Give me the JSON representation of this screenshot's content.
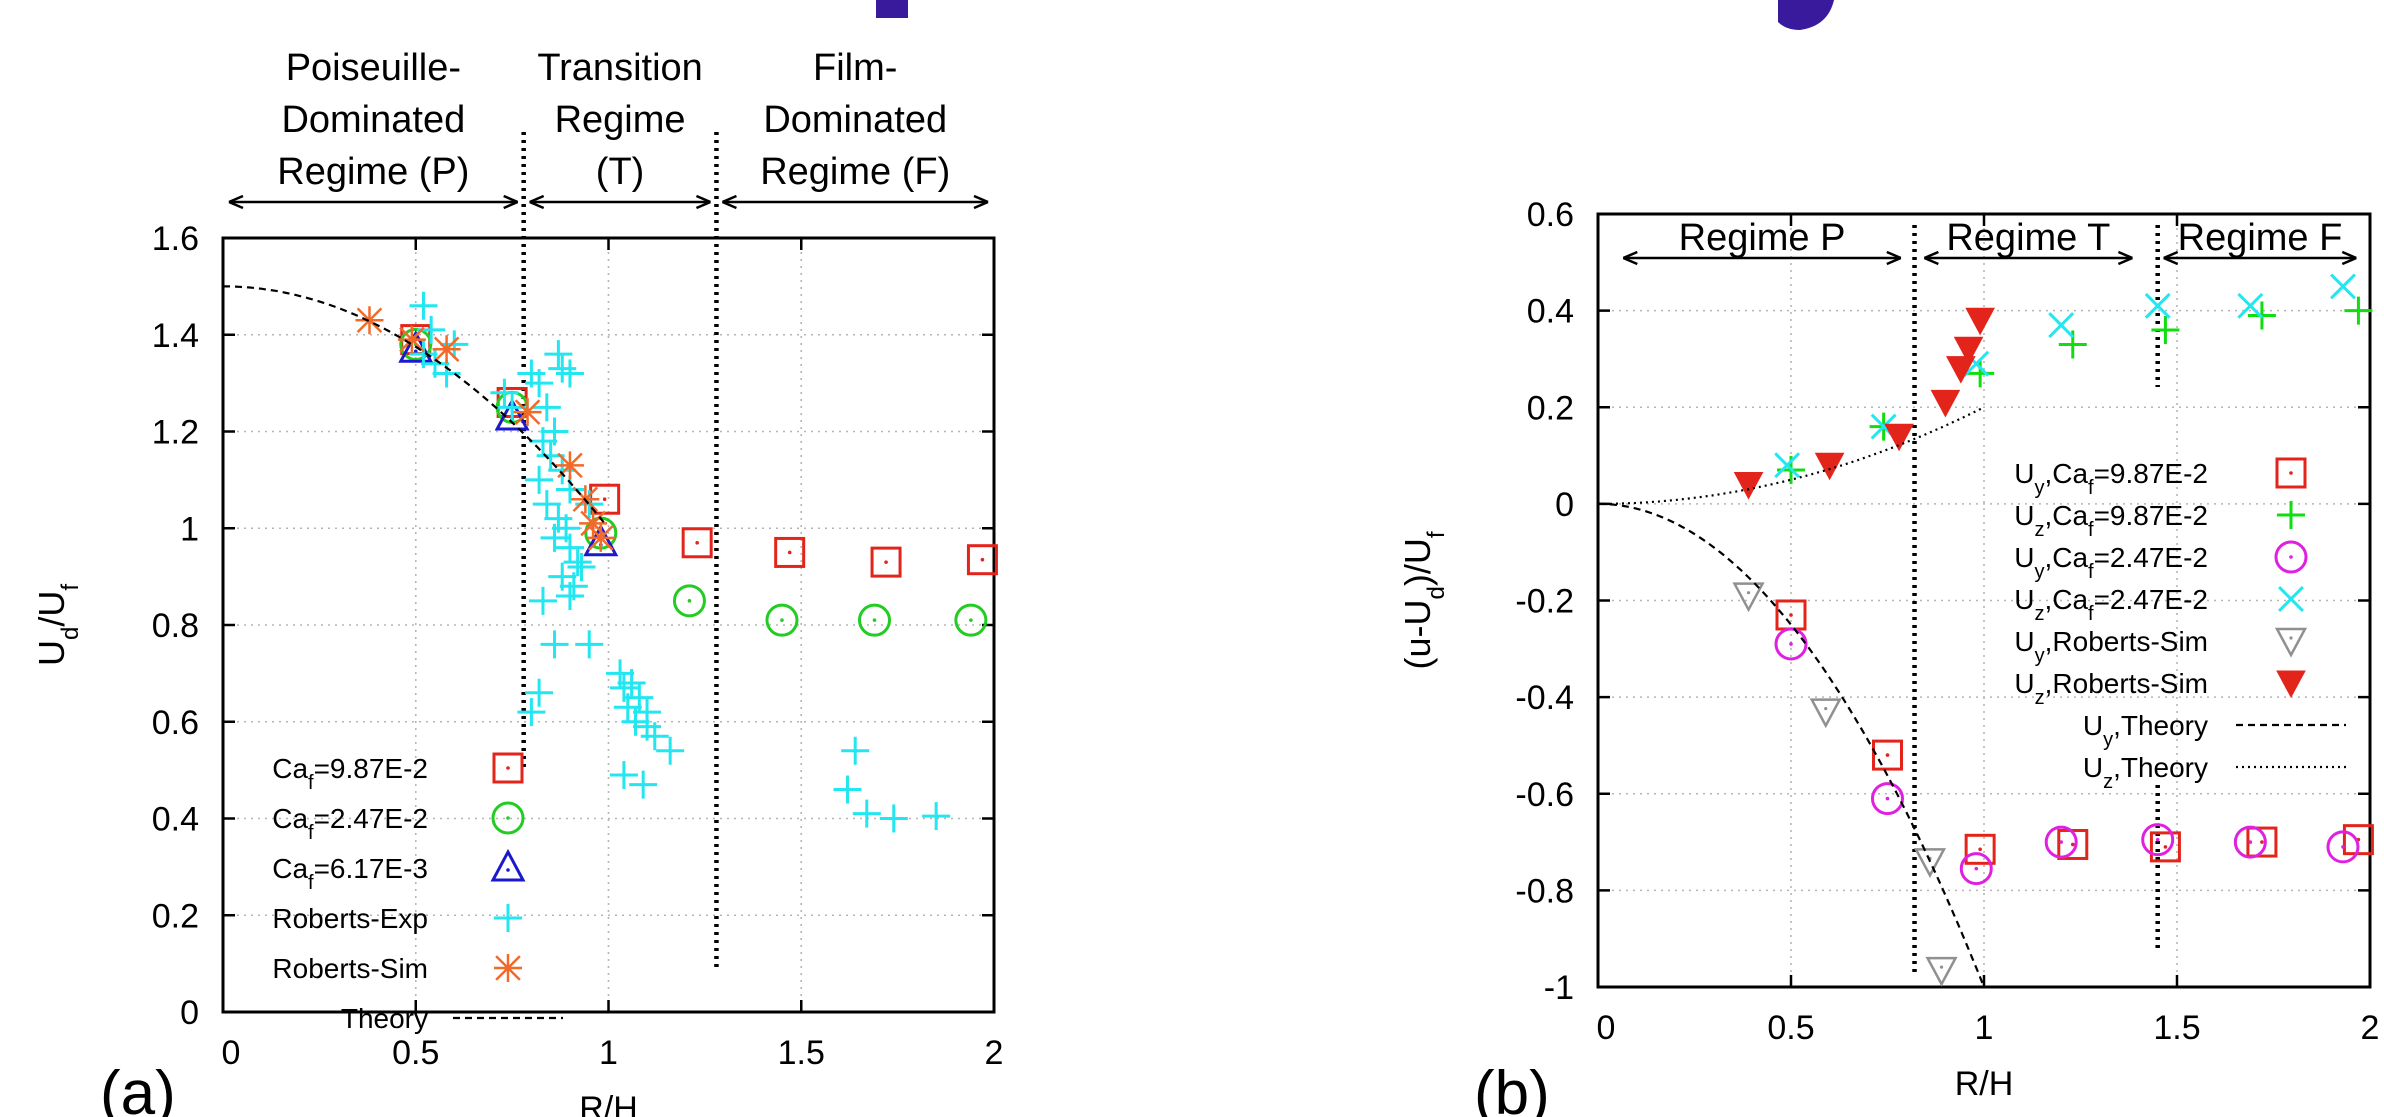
{
  "colors": {
    "accent_blue": "#3a1a9c",
    "red": "#e3241b",
    "green": "#22cc22",
    "blue": "#1a1acc",
    "cyan": "#22e6f0",
    "orange": "#f26a2a",
    "magenta": "#e020e0",
    "gray": "#909090",
    "bright_green": "#11dd11"
  },
  "chart_data": [
    {
      "panel_label": "(a)",
      "type": "scatter",
      "xlabel": "R/H",
      "ylabel": "U_d/U_f",
      "ylabel_parts": {
        "main": "U",
        "sub1": "d",
        "mid": "/U",
        "sub2": "f"
      },
      "xlim": [
        0,
        2
      ],
      "ylim": [
        0,
        1.6
      ],
      "x_ticks": [
        0,
        0.5,
        1,
        1.5,
        2
      ],
      "x_tick_labels": [
        "0",
        "0.5",
        "1",
        "1.5",
        "2"
      ],
      "y_ticks": [
        0,
        0.2,
        0.4,
        0.6,
        0.8,
        1,
        1.2,
        1.4,
        1.6
      ],
      "y_tick_labels": [
        "0",
        "0.2",
        "0.4",
        "0.6",
        "0.8",
        "1",
        "1.2",
        "1.4",
        "1.6"
      ],
      "grid": true,
      "legend_position": "bottom-left",
      "regimes": [
        {
          "lines": [
            "Poiseuille-",
            "Dominated",
            "Regime (P)"
          ],
          "x_from": 0.0,
          "x_to": 0.78
        },
        {
          "lines": [
            "Transition",
            "Regime",
            "(T)"
          ],
          "x_from": 0.78,
          "x_to": 1.28
        },
        {
          "lines": [
            "Film-",
            "Dominated",
            "Regime (F)"
          ],
          "x_from": 1.28,
          "x_to": 2.0
        }
      ],
      "boundaries": [
        0.78,
        1.28
      ],
      "series": [
        {
          "name": "Ca_f=9.87E-2",
          "name_parts": {
            "main": "Ca",
            "sub": "f",
            "rest": "=9.87E-2"
          },
          "marker": "square",
          "color": "#e3241b",
          "points": [
            [
              0.5,
              1.39
            ],
            [
              0.75,
              1.26
            ],
            [
              0.99,
              1.06
            ],
            [
              1.23,
              0.97
            ],
            [
              1.47,
              0.95
            ],
            [
              1.72,
              0.93
            ],
            [
              1.97,
              0.935
            ]
          ]
        },
        {
          "name": "Ca_f=2.47E-2",
          "name_parts": {
            "main": "Ca",
            "sub": "f",
            "rest": "=2.47E-2"
          },
          "marker": "circle",
          "color": "#22cc22",
          "points": [
            [
              0.5,
              1.38
            ],
            [
              0.75,
              1.25
            ],
            [
              0.98,
              0.99
            ],
            [
              1.21,
              0.85
            ],
            [
              1.45,
              0.81
            ],
            [
              1.69,
              0.81
            ],
            [
              1.94,
              0.81
            ]
          ]
        },
        {
          "name": "Ca_f=6.17E-3",
          "name_parts": {
            "main": "Ca",
            "sub": "f",
            "rest": "=6.17E-3"
          },
          "marker": "triangle",
          "color": "#1a1acc",
          "points": [
            [
              0.5,
              1.37
            ],
            [
              0.75,
              1.23
            ],
            [
              0.98,
              0.97
            ]
          ]
        },
        {
          "name": "Roberts-Exp",
          "marker": "plus",
          "color": "#22e6f0",
          "points": [
            [
              0.52,
              1.46
            ],
            [
              0.54,
              1.41
            ],
            [
              0.52,
              1.36
            ],
            [
              0.55,
              1.34
            ],
            [
              0.58,
              1.32
            ],
            [
              0.6,
              1.38
            ],
            [
              0.73,
              1.28
            ],
            [
              0.75,
              1.25
            ],
            [
              0.8,
              1.32
            ],
            [
              0.82,
              1.3
            ],
            [
              0.84,
              1.25
            ],
            [
              0.86,
              1.2
            ],
            [
              0.87,
              1.36
            ],
            [
              0.88,
              1.33
            ],
            [
              0.9,
              1.32
            ],
            [
              0.83,
              1.18
            ],
            [
              0.85,
              1.15
            ],
            [
              0.88,
              1.12
            ],
            [
              0.9,
              1.08
            ],
            [
              0.82,
              1.1
            ],
            [
              0.84,
              1.05
            ],
            [
              0.87,
              1.02
            ],
            [
              0.89,
              1.0
            ],
            [
              0.86,
              0.98
            ],
            [
              0.9,
              0.96
            ],
            [
              0.92,
              0.93
            ],
            [
              0.88,
              0.9
            ],
            [
              0.91,
              0.88
            ],
            [
              0.93,
              0.92
            ],
            [
              0.95,
              1.05
            ],
            [
              0.9,
              0.86
            ],
            [
              0.83,
              0.85
            ],
            [
              0.86,
              0.76
            ],
            [
              0.95,
              0.76
            ],
            [
              0.82,
              0.66
            ],
            [
              0.8,
              0.62
            ],
            [
              1.03,
              0.7
            ],
            [
              1.04,
              0.67
            ],
            [
              1.06,
              0.68
            ],
            [
              1.08,
              0.65
            ],
            [
              1.05,
              0.63
            ],
            [
              1.1,
              0.62
            ],
            [
              1.07,
              0.6
            ],
            [
              1.1,
              0.59
            ],
            [
              1.12,
              0.57
            ],
            [
              1.16,
              0.54
            ],
            [
              1.04,
              0.49
            ],
            [
              1.09,
              0.47
            ],
            [
              1.64,
              0.54
            ],
            [
              1.62,
              0.46
            ],
            [
              1.67,
              0.41
            ],
            [
              1.74,
              0.4
            ],
            [
              1.85,
              0.405
            ]
          ]
        },
        {
          "name": "Roberts-Sim",
          "marker": "asterisk",
          "color": "#f26a2a",
          "points": [
            [
              0.38,
              1.43
            ],
            [
              0.49,
              1.39
            ],
            [
              0.58,
              1.37
            ],
            [
              0.79,
              1.24
            ],
            [
              0.9,
              1.13
            ],
            [
              0.94,
              1.06
            ],
            [
              0.96,
              1.01
            ],
            [
              0.98,
              0.98
            ]
          ]
        },
        {
          "name": "Theory",
          "marker": "dashed-line",
          "color": "#000000",
          "curve": "poiseuille",
          "x_range": [
            0.0,
            0.99
          ]
        }
      ]
    },
    {
      "panel_label": "(b)",
      "type": "scatter",
      "xlabel": "R/H",
      "ylabel": "(u-U_d)/U_f",
      "ylabel_parts": {
        "main": "(u-U",
        "sub1": "d",
        "mid": ")/U",
        "sub2": "f"
      },
      "xlim": [
        0,
        2
      ],
      "ylim": [
        -1,
        0.6
      ],
      "x_ticks": [
        0,
        0.5,
        1,
        1.5,
        2
      ],
      "x_tick_labels": [
        "0",
        "0.5",
        "1",
        "1.5",
        "2"
      ],
      "y_ticks": [
        -1,
        -0.8,
        -0.6,
        -0.4,
        -0.2,
        0,
        0.2,
        0.4,
        0.6
      ],
      "y_tick_labels": [
        "-1",
        "-0.8",
        "-0.6",
        "-0.4",
        "-0.2",
        "0",
        "0.2",
        "0.4",
        "0.6"
      ],
      "grid": true,
      "legend_position": "right",
      "regimes": [
        {
          "label": "Regime P",
          "x_from": 0.05,
          "x_to": 0.8
        },
        {
          "label": "Regime T",
          "x_from": 0.83,
          "x_to": 1.4
        },
        {
          "label": "Regime F",
          "x_from": 1.45,
          "x_to": 1.98
        }
      ],
      "boundaries": [
        0.82,
        1.45
      ],
      "series": [
        {
          "name": "U_y,Ca_f=9.87E-2",
          "name_parts": {
            "a": "U",
            "s1": "y",
            "b": ",Ca",
            "s2": "f",
            "c": "=9.87E-2"
          },
          "marker": "square",
          "color": "#e3241b",
          "points": [
            [
              0.5,
              -0.23
            ],
            [
              0.75,
              -0.52
            ],
            [
              0.99,
              -0.715
            ],
            [
              1.23,
              -0.705
            ],
            [
              1.47,
              -0.71
            ],
            [
              1.72,
              -0.7
            ],
            [
              1.97,
              -0.695
            ]
          ]
        },
        {
          "name": "U_z,Ca_f=9.87E-2",
          "name_parts": {
            "a": "U",
            "s1": "z",
            "b": ",Ca",
            "s2": "f",
            "c": "=9.87E-2"
          },
          "marker": "plus",
          "color": "#11dd11",
          "points": [
            [
              0.5,
              0.07
            ],
            [
              0.74,
              0.16
            ],
            [
              0.99,
              0.27
            ],
            [
              1.23,
              0.33
            ],
            [
              1.47,
              0.36
            ],
            [
              1.72,
              0.39
            ],
            [
              1.97,
              0.4
            ]
          ]
        },
        {
          "name": "U_y,Ca_f=2.47E-2",
          "name_parts": {
            "a": "U",
            "s1": "y",
            "b": ",Ca",
            "s2": "f",
            "c": "=2.47E-2"
          },
          "marker": "circle",
          "color": "#e020e0",
          "points": [
            [
              0.5,
              -0.29
            ],
            [
              0.75,
              -0.61
            ],
            [
              0.98,
              -0.755
            ],
            [
              1.2,
              -0.7
            ],
            [
              1.45,
              -0.695
            ],
            [
              1.69,
              -0.7
            ],
            [
              1.93,
              -0.71
            ]
          ]
        },
        {
          "name": "U_z,Ca_f=2.47E-2",
          "name_parts": {
            "a": "U",
            "s1": "z",
            "b": ",Ca",
            "s2": "f",
            "c": "=2.47E-2"
          },
          "marker": "cross",
          "color": "#22e6f0",
          "points": [
            [
              0.49,
              0.08
            ],
            [
              0.74,
              0.16
            ],
            [
              0.98,
              0.29
            ],
            [
              1.2,
              0.37
            ],
            [
              1.45,
              0.41
            ],
            [
              1.69,
              0.41
            ],
            [
              1.93,
              0.45
            ]
          ]
        },
        {
          "name": "U_y,Roberts-Sim",
          "name_parts": {
            "a": "U",
            "s1": "y",
            "b": ",Roberts-Sim"
          },
          "marker": "triangle-down-open",
          "color": "#909090",
          "points": [
            [
              0.39,
              -0.19
            ],
            [
              0.59,
              -0.43
            ],
            [
              0.86,
              -0.74
            ],
            [
              0.89,
              -0.965
            ]
          ]
        },
        {
          "name": "U_z,Roberts-Sim",
          "name_parts": {
            "a": "U",
            "s1": "z",
            "b": ",Roberts-Sim"
          },
          "marker": "triangle-down-filled",
          "color": "#e3241b",
          "points": [
            [
              0.39,
              0.04
            ],
            [
              0.6,
              0.08
            ],
            [
              0.78,
              0.14
            ],
            [
              0.9,
              0.21
            ],
            [
              0.94,
              0.28
            ],
            [
              0.96,
              0.32
            ],
            [
              0.99,
              0.38
            ]
          ]
        },
        {
          "name": "U_y,Theory",
          "name_parts": {
            "a": "U",
            "s1": "y",
            "b": ",Theory"
          },
          "marker": "dashed-line",
          "color": "#000000",
          "curve": "uy",
          "x_range": [
            0.0,
            1.0
          ]
        },
        {
          "name": "U_z,Theory",
          "name_parts": {
            "a": "U",
            "s1": "z",
            "b": ",Theory"
          },
          "marker": "dotted-line",
          "color": "#000000",
          "curve": "uz",
          "x_range": [
            0.0,
            1.0
          ]
        }
      ]
    }
  ]
}
